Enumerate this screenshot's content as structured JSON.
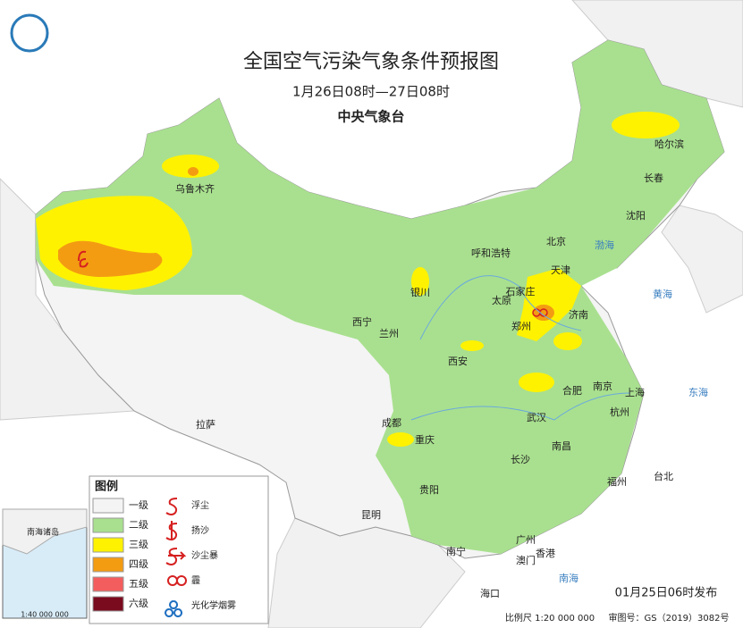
{
  "header": {
    "title": "全国空气污染气象条件预报图",
    "subtitle": "1月26日08时—27日08时",
    "agency": "中央气象台"
  },
  "cities": [
    "乌鲁木齐",
    "哈尔滨",
    "长春",
    "沈阳",
    "北京",
    "天津",
    "呼和浩特",
    "石家庄",
    "济南",
    "太原",
    "银川",
    "西宁",
    "兰州",
    "郑州",
    "西安",
    "南京",
    "合肥",
    "上海",
    "杭州",
    "武汉",
    "成都",
    "重庆",
    "南昌",
    "长沙",
    "拉萨",
    "贵阳",
    "福州",
    "台北",
    "昆明",
    "南宁",
    "广州",
    "香港",
    "澳门",
    "海口"
  ],
  "seas": [
    "渤海",
    "黄海",
    "东海",
    "南海"
  ],
  "legend": {
    "title": "图例",
    "levels": [
      {
        "label": "一级",
        "color": "#f4f4f4"
      },
      {
        "label": "二级",
        "color": "#a9e08f"
      },
      {
        "label": "三级",
        "color": "#fff200"
      },
      {
        "label": "四级",
        "color": "#f39c12"
      },
      {
        "label": "五级",
        "color": "#f45d5d"
      },
      {
        "label": "六级",
        "color": "#7a0a1e"
      }
    ],
    "symbols": [
      "浮尘",
      "扬沙",
      "沙尘暴",
      "霾",
      "光化学烟雾"
    ]
  },
  "inset": {
    "label": "南海诸岛",
    "scale": "1:40 000 000"
  },
  "footer": {
    "issued": "01月25日06时发布",
    "scale": "比例尺 1:20 000 000",
    "review": "审图号：GS（2019）3082号"
  }
}
